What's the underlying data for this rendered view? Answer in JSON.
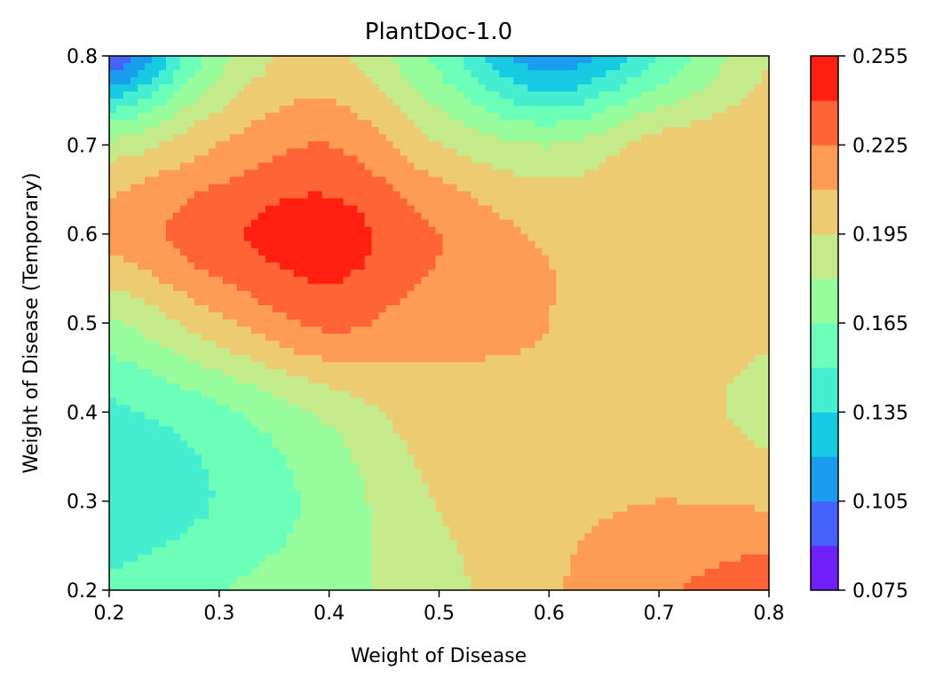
{
  "chart_data": {
    "type": "contour",
    "title": "PlantDoc-1.0",
    "xlabel": "Weight of Disease",
    "ylabel": "Weight of Disease (Temporary)",
    "xlim": [
      0.2,
      0.8
    ],
    "ylim": [
      0.2,
      0.8
    ],
    "x_ticks": [
      "0.2",
      "0.3",
      "0.4",
      "0.5",
      "0.6",
      "0.7",
      "0.8"
    ],
    "y_ticks": [
      "0.2",
      "0.3",
      "0.4",
      "0.5",
      "0.6",
      "0.7",
      "0.8"
    ],
    "colorbar": {
      "range": [
        0.075,
        0.255
      ],
      "tick_labels": [
        "0.075",
        "0.105",
        "0.135",
        "0.165",
        "0.195",
        "0.225",
        "0.255"
      ],
      "levels": [
        0.075,
        0.09,
        0.105,
        0.12,
        0.135,
        0.15,
        0.165,
        0.18,
        0.195,
        0.21,
        0.225,
        0.24,
        0.255
      ],
      "colors": [
        "#7021fb",
        "#4563fb",
        "#1b9def",
        "#17c9e2",
        "#45eed0",
        "#6cffb9",
        "#97fd9c",
        "#c5ea8a",
        "#eccb72",
        "#fe9b55",
        "#ff6437",
        "#ff2012"
      ]
    },
    "z_grid": {
      "x": [
        0.2,
        0.3,
        0.4,
        0.5,
        0.6,
        0.7,
        0.8
      ],
      "y": [
        0.2,
        0.3,
        0.4,
        0.5,
        0.6,
        0.7,
        0.8
      ],
      "rows_by_y": [
        [
          0.152,
          0.164,
          0.175,
          0.19,
          0.208,
          0.222,
          0.234
        ],
        [
          0.14,
          0.151,
          0.171,
          0.196,
          0.206,
          0.21,
          0.208
        ],
        [
          0.147,
          0.162,
          0.184,
          0.205,
          0.207,
          0.205,
          0.19
        ],
        [
          0.178,
          0.206,
          0.228,
          0.214,
          0.21,
          0.205,
          0.199
        ],
        [
          0.214,
          0.236,
          0.246,
          0.225,
          0.207,
          0.205,
          0.206
        ],
        [
          0.185,
          0.21,
          0.225,
          0.196,
          0.18,
          0.2,
          0.205
        ],
        [
          0.09,
          0.175,
          0.198,
          0.16,
          0.11,
          0.15,
          0.194
        ]
      ]
    }
  }
}
